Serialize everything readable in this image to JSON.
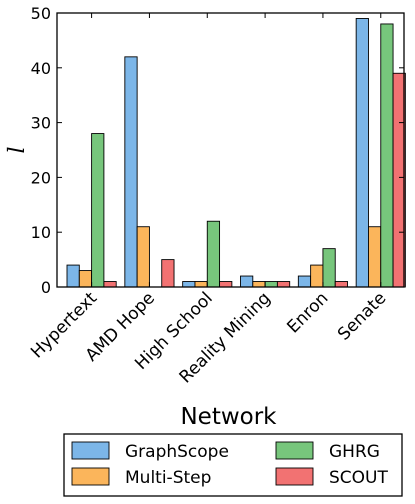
{
  "chart_data": {
    "type": "bar",
    "xlabel": "Network",
    "ylabel": "l",
    "ylim": [
      0,
      50
    ],
    "yticks": [
      0,
      10,
      20,
      30,
      40,
      50
    ],
    "grid": false,
    "legend_position": "bottom",
    "categories": [
      "Hypertext",
      "AMD Hope",
      "High School",
      "Reality Mining",
      "Enron",
      "Senate"
    ],
    "series": [
      {
        "name": "GraphScope",
        "color": "#7cb6e8",
        "values": [
          4,
          42,
          1,
          2,
          2,
          49
        ]
      },
      {
        "name": "Multi-Step",
        "color": "#fbb55b",
        "values": [
          3,
          11,
          1,
          1,
          4,
          11
        ]
      },
      {
        "name": "GHRG",
        "color": "#77c67c",
        "values": [
          28,
          0,
          12,
          1,
          7,
          48
        ]
      },
      {
        "name": "SCOUT",
        "color": "#f27272",
        "values": [
          1,
          5,
          1,
          1,
          1,
          39
        ]
      }
    ]
  }
}
